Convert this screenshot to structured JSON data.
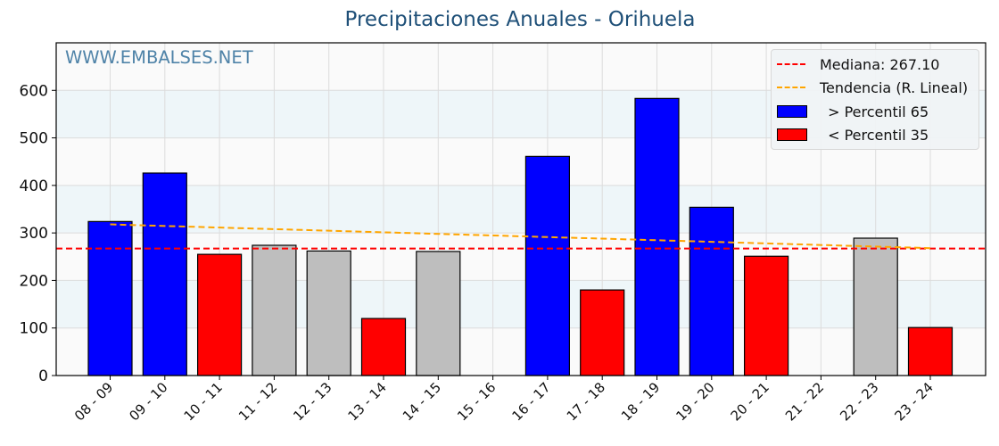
{
  "title": "Precipitaciones Anuales - Orihuela",
  "watermark": "WWW.EMBALSES.NET",
  "legend": {
    "median": "Mediana: 267.10",
    "trend": "Tendencia (R. Lineal)",
    "above": " > Percentil 65",
    "below": " < Percentil 35"
  },
  "colors": {
    "above": "#0000ff",
    "below": "#ff0000",
    "normal": "#bebebe",
    "median_line": "#ff0000",
    "trend_line": "#ffa500",
    "title": "#1f5078",
    "watermark": "#4f83a8"
  },
  "chart_data": {
    "type": "bar",
    "title": "Precipitaciones Anuales - Orihuela",
    "xlabel": "",
    "ylabel": "",
    "ylim": [
      0,
      700
    ],
    "yticks": [
      0,
      100,
      200,
      300,
      400,
      500,
      600
    ],
    "grid": true,
    "legend_position": "upper right",
    "categories": [
      "08 - 09",
      "09 - 10",
      "10 - 11",
      "11 - 12",
      "12 - 13",
      "13 - 14",
      "14 - 15",
      "15 - 16",
      "16 - 17",
      "17 - 18",
      "18 - 19",
      "19 - 20",
      "20 - 21",
      "21 - 22",
      "22 - 23",
      "23 - 24"
    ],
    "values": [
      324,
      426,
      255,
      274,
      262,
      120,
      261,
      0,
      461,
      180,
      583,
      354,
      251,
      0,
      289,
      101
    ],
    "bar_class": [
      "above",
      "above",
      "below",
      "normal",
      "normal",
      "below",
      "normal",
      "none",
      "above",
      "below",
      "above",
      "above",
      "below",
      "none",
      "normal",
      "below"
    ],
    "median": 267.1,
    "trend": {
      "start": 318,
      "end": 268,
      "label": "Tendencia (R. Lineal)"
    }
  }
}
